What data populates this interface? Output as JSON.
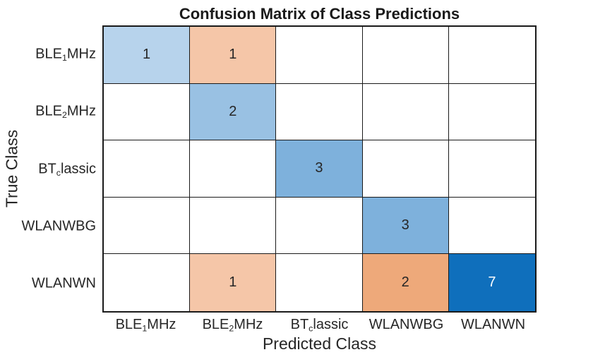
{
  "chart_data": {
    "type": "heatmap",
    "title": "Confusion Matrix of Class Predictions",
    "xlabel": "Predicted Class",
    "ylabel": "True Class",
    "classes": [
      "BLE_1MHz",
      "BLE_2MHz",
      "BT_classic",
      "WLANWBG",
      "WLANWN"
    ],
    "class_label_parts": [
      [
        {
          "t": "BLE"
        },
        {
          "t": "1",
          "sub": true
        },
        {
          "t": "MHz"
        }
      ],
      [
        {
          "t": "BLE"
        },
        {
          "t": "2",
          "sub": true
        },
        {
          "t": "MHz"
        }
      ],
      [
        {
          "t": "BT"
        },
        {
          "t": "c",
          "sub": true
        },
        {
          "t": "lassic"
        }
      ],
      [
        {
          "t": "WLANWBG"
        }
      ],
      [
        {
          "t": "WLANWN"
        }
      ]
    ],
    "matrix": [
      [
        1,
        1,
        0,
        0,
        0
      ],
      [
        0,
        2,
        0,
        0,
        0
      ],
      [
        0,
        0,
        3,
        0,
        0
      ],
      [
        0,
        0,
        0,
        3,
        0
      ],
      [
        0,
        1,
        0,
        2,
        7
      ]
    ],
    "cell_colors": [
      [
        "#B7D3EC",
        "#F5C6A8",
        "#FFFFFF",
        "#FFFFFF",
        "#FFFFFF"
      ],
      [
        "#FFFFFF",
        "#99C1E3",
        "#FFFFFF",
        "#FFFFFF",
        "#FFFFFF"
      ],
      [
        "#FFFFFF",
        "#FFFFFF",
        "#7EB1DC",
        "#FFFFFF",
        "#FFFFFF"
      ],
      [
        "#FFFFFF",
        "#FFFFFF",
        "#FFFFFF",
        "#7EB1DC",
        "#FFFFFF"
      ],
      [
        "#FFFFFF",
        "#F5C6A8",
        "#FFFFFF",
        "#EEA97A",
        "#0F6FBC"
      ]
    ],
    "colors": {
      "diagonal_base": "#0072BD",
      "offdiagonal_base": "#D95319",
      "grid_line": "#1A1A1A",
      "value_text_dark": "#262626",
      "value_text_light": "#FFFFFF",
      "background": "#FFFFFF"
    },
    "layout": {
      "grid_on": true,
      "tick_marks": false,
      "rows": 5,
      "cols": 5
    }
  }
}
